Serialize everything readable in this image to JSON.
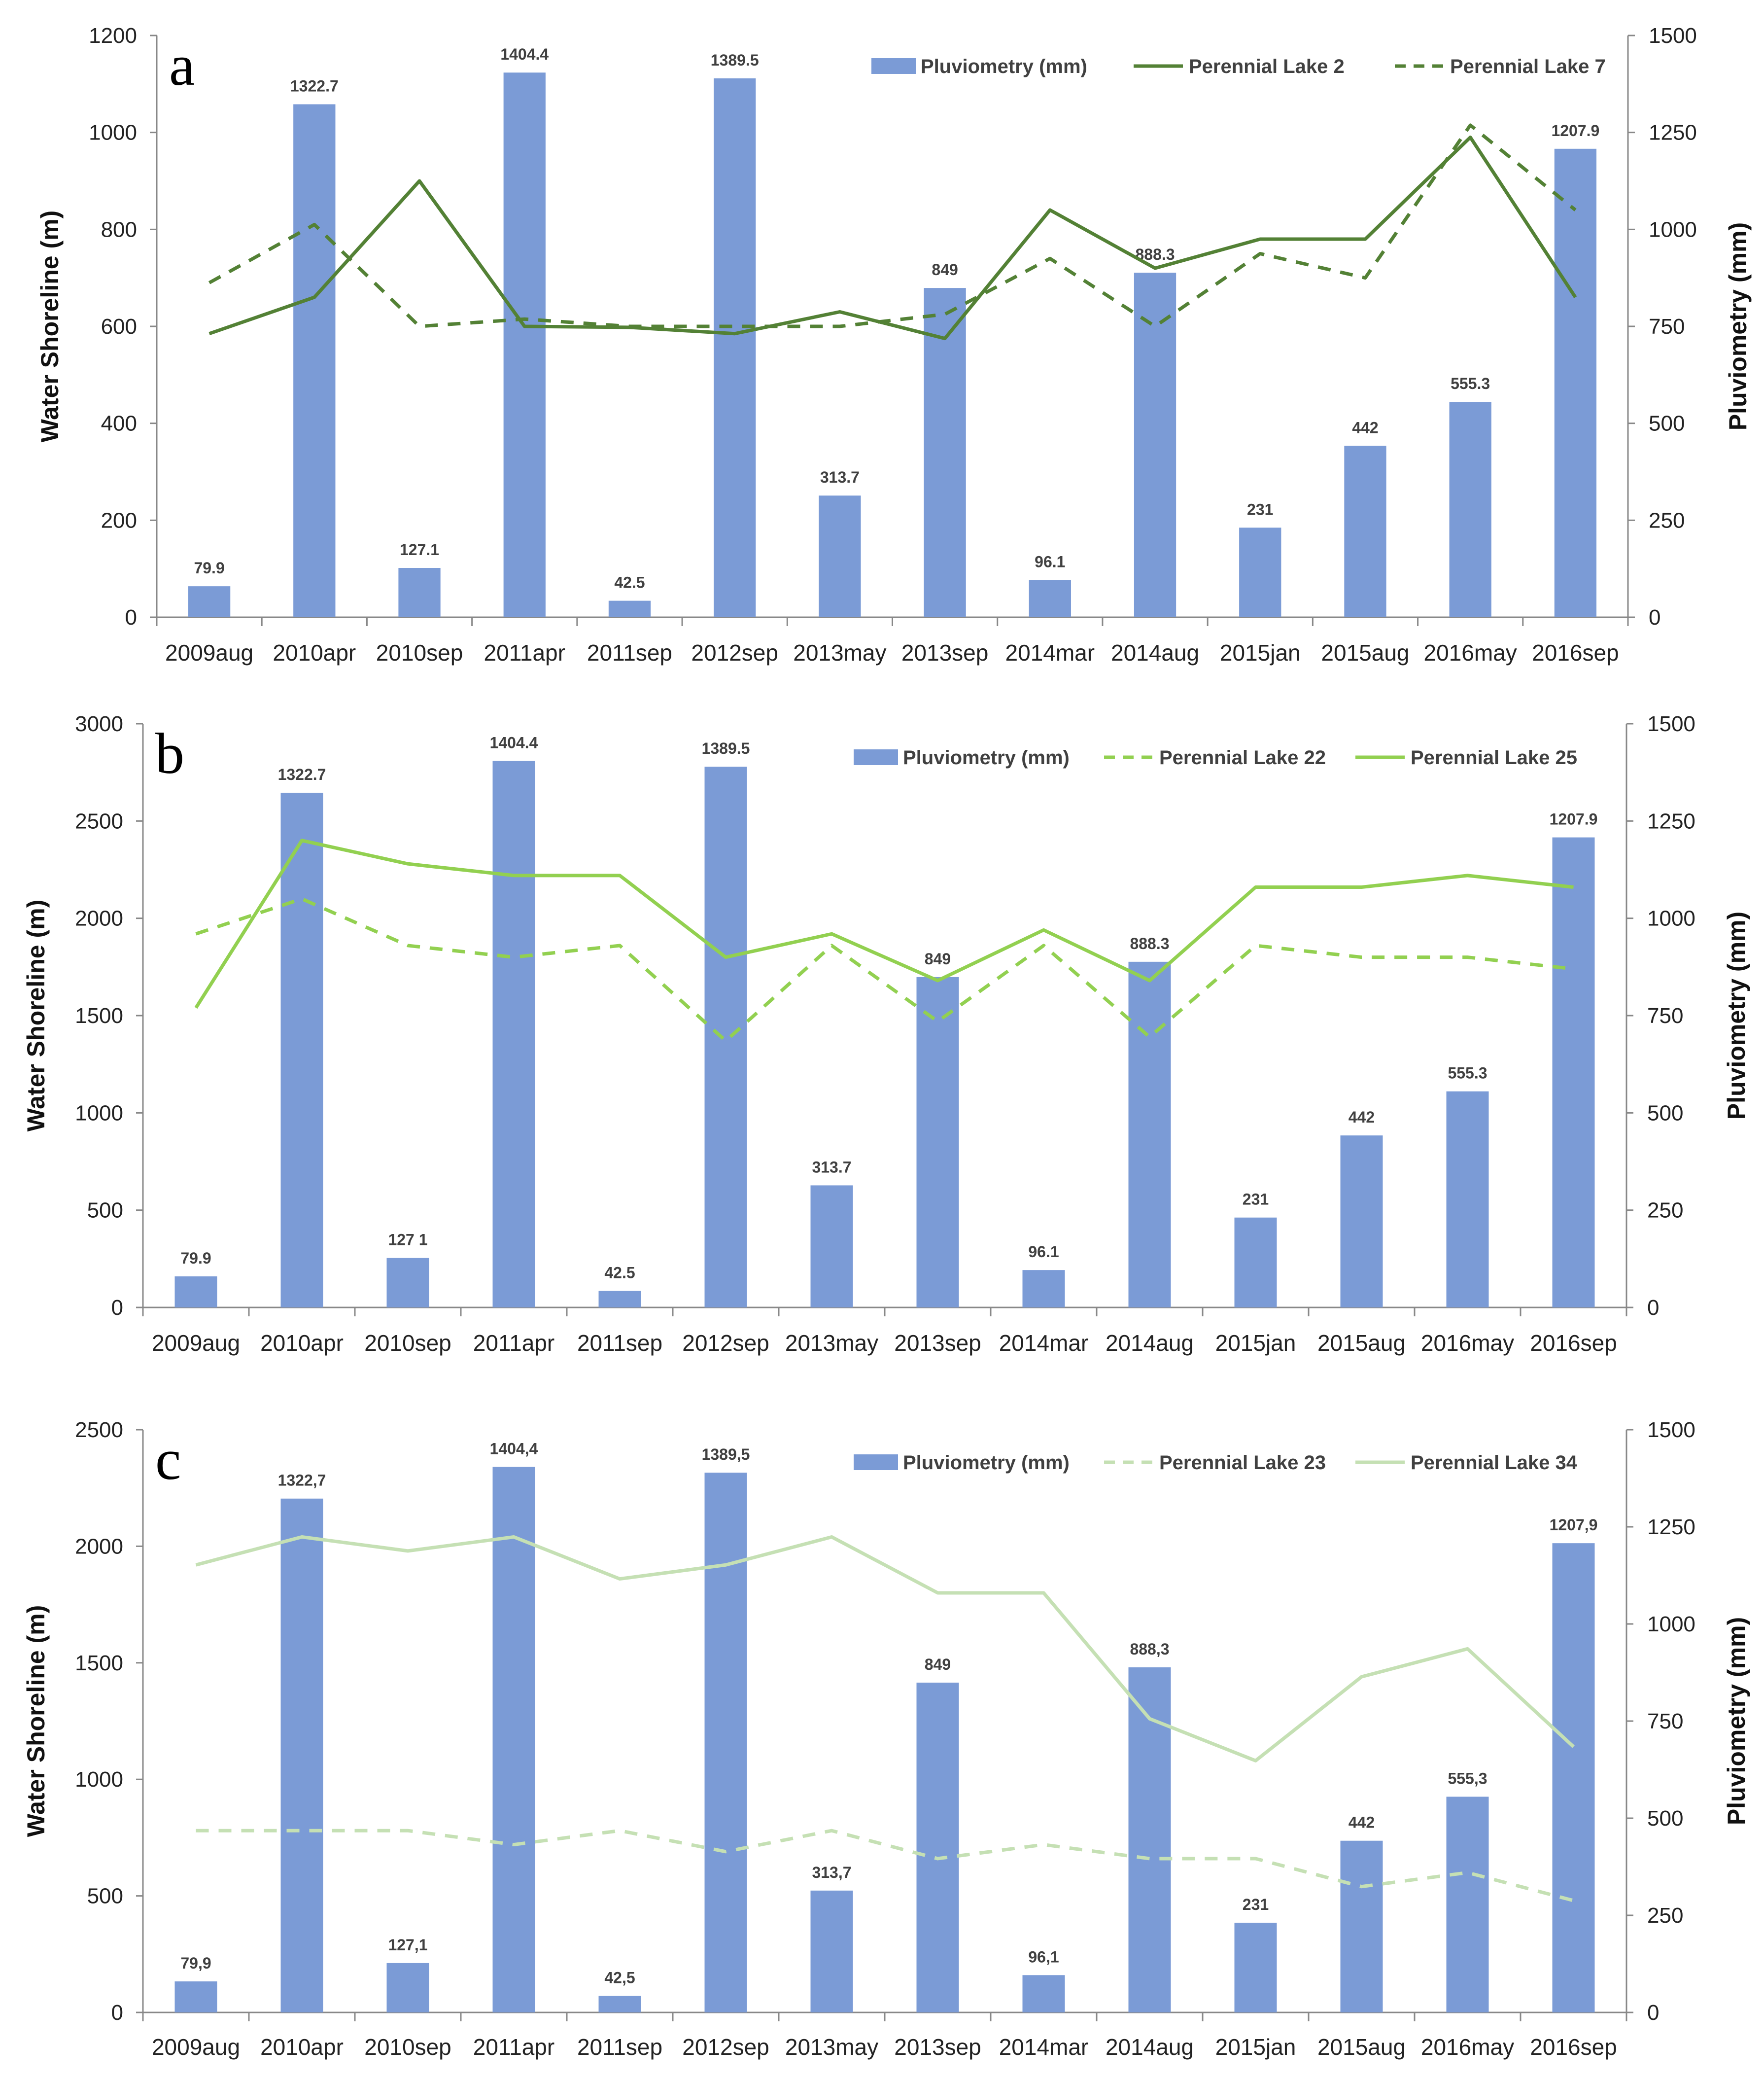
{
  "chart_data": [
    {
      "type": "bar+line",
      "panel_label": "a",
      "categories": [
        "2009aug",
        "2010apr",
        "2010sep",
        "2011apr",
        "2011sep",
        "2012sep",
        "2013may",
        "2013sep",
        "2014mar",
        "2014aug",
        "2015jan",
        "2015aug",
        "2016may",
        "2016sep"
      ],
      "ylabel_left": "Water Shoreline (m)",
      "ylabel_right": "Pluviometry (mm)",
      "ylim_left": [
        0,
        1200
      ],
      "ylim_right": [
        0,
        1500
      ],
      "yticks_left": [
        "0",
        "200",
        "400",
        "600",
        "800",
        "1000",
        "1200"
      ],
      "yticks_right": [
        "0",
        "250",
        "500",
        "750",
        "1000",
        "1250",
        "1500"
      ],
      "bars": {
        "name": "Pluviometry (mm)",
        "axis": "right",
        "color": "#7b9bd6",
        "values": [
          79.9,
          1322.7,
          127.1,
          1404.4,
          42.5,
          1389.5,
          313.7,
          849,
          96.1,
          888.3,
          231,
          442,
          555.3,
          1207.9
        ],
        "labels": [
          "79.9",
          "1322.7",
          "127.1",
          "1404.4",
          "42.5",
          "1389.5",
          "313.7",
          "849",
          "96.1",
          "888.3",
          "231",
          "442",
          "555.3",
          "1207.9"
        ]
      },
      "series": [
        {
          "name": "Perennial Lake 2",
          "axis": "left",
          "style": "solid",
          "color": "#538135",
          "values": [
            585,
            660,
            900,
            600,
            598,
            585,
            630,
            575,
            840,
            720,
            780,
            780,
            990,
            660
          ]
        },
        {
          "name": "Perennial Lake 7",
          "axis": "left",
          "style": "dashed",
          "color": "#538135",
          "values": [
            690,
            810,
            600,
            615,
            600,
            600,
            600,
            625,
            740,
            600,
            750,
            700,
            1015,
            840
          ]
        }
      ]
    },
    {
      "type": "bar+line",
      "panel_label": "b",
      "categories": [
        "2009aug",
        "2010apr",
        "2010sep",
        "2011apr",
        "2011sep",
        "2012sep",
        "2013may",
        "2013sep",
        "2014mar",
        "2014aug",
        "2015jan",
        "2015aug",
        "2016may",
        "2016sep"
      ],
      "ylabel_left": "Water Shoreline (m)",
      "ylabel_right": "Pluviometry (mm)",
      "ylim_left": [
        0,
        3000
      ],
      "ylim_right": [
        0,
        1500
      ],
      "yticks_left": [
        "0",
        "500",
        "1000",
        "1500",
        "2000",
        "2500",
        "3000"
      ],
      "yticks_right": [
        "0",
        "250",
        "500",
        "750",
        "1000",
        "1250",
        "1500"
      ],
      "bars": {
        "name": "Pluviometry (mm)",
        "axis": "right",
        "color": "#7b9bd6",
        "values": [
          79.9,
          1322.7,
          127.1,
          1404.4,
          42.5,
          1389.5,
          313.7,
          849,
          96.1,
          888.3,
          231,
          442,
          555.3,
          1207.9
        ],
        "labels": [
          "79.9",
          "1322.7",
          "127 1",
          "1404.4",
          "42.5",
          "1389.5",
          "313.7",
          "849",
          "96.1",
          "888.3",
          "231",
          "442",
          "555.3",
          "1207.9"
        ]
      },
      "series": [
        {
          "name": "Perennial Lake 22",
          "axis": "left",
          "style": "dashed",
          "color": "#92d050",
          "values": [
            1920,
            2100,
            1860,
            1800,
            1860,
            1370,
            1860,
            1470,
            1860,
            1390,
            1860,
            1800,
            1800,
            1740
          ]
        },
        {
          "name": "Perennial Lake 25",
          "axis": "left",
          "style": "solid",
          "color": "#92d050",
          "values": [
            1540,
            2400,
            2280,
            2220,
            2220,
            1800,
            1920,
            1680,
            1940,
            1680,
            2160,
            2160,
            2220,
            2160
          ]
        }
      ]
    },
    {
      "type": "bar+line",
      "panel_label": "c",
      "categories": [
        "2009aug",
        "2010apr",
        "2010sep",
        "2011apr",
        "2011sep",
        "2012sep",
        "2013may",
        "2013sep",
        "2014mar",
        "2014aug",
        "2015jan",
        "2015aug",
        "2016may",
        "2016sep"
      ],
      "ylabel_left": "Water Shoreline (m)",
      "ylabel_right": "Pluviometry (mm)",
      "ylim_left": [
        0,
        2500
      ],
      "ylim_right": [
        0,
        1500
      ],
      "yticks_left": [
        "0",
        "500",
        "1000",
        "1500",
        "2000",
        "2500"
      ],
      "yticks_right": [
        "0",
        "250",
        "500",
        "750",
        "1000",
        "1250",
        "1500"
      ],
      "bars": {
        "name": "Pluviometry (mm)",
        "axis": "right",
        "color": "#7b9bd6",
        "values": [
          79.9,
          1322.7,
          127.1,
          1404.4,
          42.5,
          1389.5,
          313.7,
          849,
          96.1,
          888.3,
          231,
          442,
          555.3,
          1207.9
        ],
        "labels": [
          "79,9",
          "1322,7",
          "127,1",
          "1404,4",
          "42,5",
          "1389,5",
          "313,7",
          "849",
          "96,1",
          "888,3",
          "231",
          "442",
          "555,3",
          "1207,9"
        ]
      },
      "series": [
        {
          "name": "Perennial Lake 23",
          "axis": "left",
          "style": "dashed",
          "color": "#c5e0b4",
          "values": [
            780,
            780,
            780,
            720,
            780,
            690,
            780,
            660,
            720,
            660,
            660,
            540,
            600,
            480
          ]
        },
        {
          "name": "Perennial Lake 34",
          "axis": "left",
          "style": "solid",
          "color": "#c5e0b4",
          "values": [
            1920,
            2040,
            1980,
            2040,
            1860,
            1920,
            2040,
            1800,
            1800,
            1260,
            1080,
            1440,
            1560,
            1140
          ]
        }
      ]
    }
  ]
}
